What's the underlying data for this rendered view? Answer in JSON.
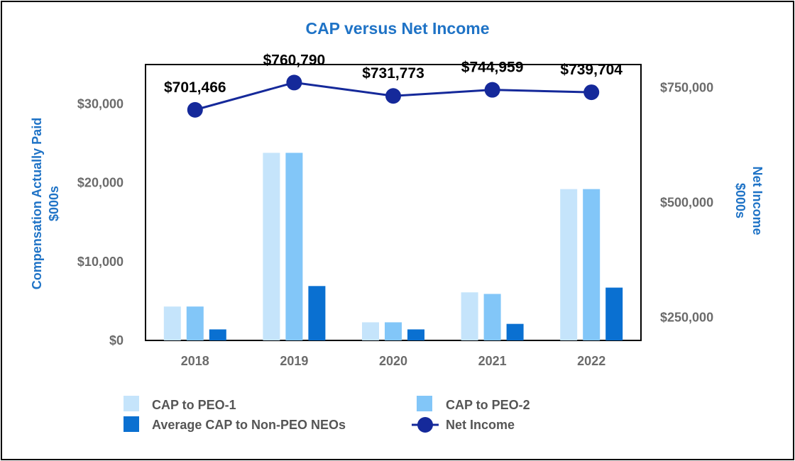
{
  "chart_data": {
    "type": "bar",
    "title": "CAP versus Net Income",
    "categories": [
      "2018",
      "2019",
      "2020",
      "2021",
      "2022"
    ],
    "ylabel_left": [
      "Compensation Actually Paid",
      "$000s"
    ],
    "ylabel_right": [
      "Net Income",
      "$000s"
    ],
    "ylim_left": [
      0,
      35000
    ],
    "ylim_right": [
      200000,
      800000
    ],
    "yticks_left": [
      {
        "value": 0,
        "label": "$0"
      },
      {
        "value": 10000,
        "label": "$10,000"
      },
      {
        "value": 20000,
        "label": "$20,000"
      },
      {
        "value": 30000,
        "label": "$30,000"
      }
    ],
    "yticks_right": [
      {
        "value": 250000,
        "label": "$250,000"
      },
      {
        "value": 500000,
        "label": "$500,000"
      },
      {
        "value": 750000,
        "label": "$750,000"
      }
    ],
    "series": [
      {
        "name": "CAP to PEO-1",
        "type": "bar",
        "axis": "left",
        "color": "#c5e4fb",
        "values": [
          4300,
          23800,
          2300,
          6100,
          19200
        ]
      },
      {
        "name": "CAP to PEO-2",
        "type": "bar",
        "axis": "left",
        "color": "#82c6f8",
        "values": [
          4300,
          23800,
          2300,
          5900,
          19200
        ]
      },
      {
        "name": "Average CAP to Non-PEO NEOs",
        "type": "bar",
        "axis": "left",
        "color": "#0a70d1",
        "values": [
          1400,
          6900,
          1400,
          2100,
          6700
        ]
      },
      {
        "name": "Net Income",
        "type": "line",
        "axis": "right",
        "color": "#15299a",
        "values": [
          701466,
          760790,
          731773,
          744959,
          739704
        ],
        "labels": [
          "$701,466",
          "$760,790",
          "$731,773",
          "$744,959",
          "$739,704"
        ]
      }
    ],
    "legend": [
      "CAP to PEO-1",
      "CAP to PEO-2",
      "Average CAP to Non-PEO NEOs",
      "Net Income"
    ],
    "legend_position": "bottom",
    "grid": false
  }
}
